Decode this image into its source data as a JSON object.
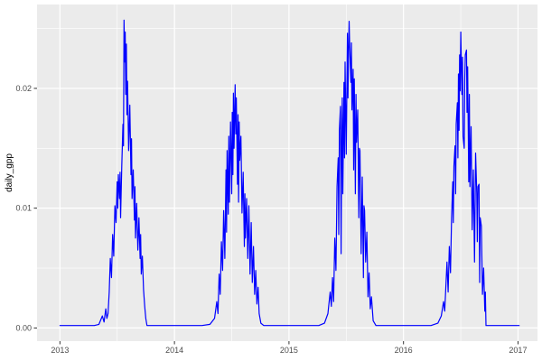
{
  "figure": {
    "background": "#FFFFFF"
  },
  "chart_data": {
    "type": "line",
    "title": "",
    "xlabel": "",
    "ylabel": "daily_gpp",
    "legend": "none",
    "grid": true,
    "panel_background": "#EBEBEB",
    "grid_major_color": "#FFFFFF",
    "grid_minor_color": "#FFFFFF",
    "tick_color": "#333333",
    "tick_label_color": "#4D4D4D",
    "xlim": [
      2012.8,
      2017.17
    ],
    "ylim": [
      -0.0011,
      0.027
    ],
    "x_ticks": [
      2013,
      2014,
      2015,
      2016,
      2017
    ],
    "x_tick_labels": [
      "2013",
      "2014",
      "2015",
      "2016",
      "2017"
    ],
    "x_minor_ticks": [
      2013.5,
      2014.5,
      2015.5,
      2016.5
    ],
    "y_ticks": [
      0.0,
      0.01,
      0.02
    ],
    "y_tick_labels": [
      "0.00",
      "0.01",
      "0.02"
    ],
    "y_minor_ticks": [
      0.005,
      0.015,
      0.025
    ],
    "series": [
      {
        "name": "daily_gpp",
        "color": "#0000FF",
        "points": [
          [
            2013.0,
            0.0002
          ],
          [
            2013.08,
            0.0002
          ],
          [
            2013.16,
            0.0002
          ],
          [
            2013.24,
            0.0002
          ],
          [
            2013.3,
            0.0002
          ],
          [
            2013.34,
            0.0003
          ],
          [
            2013.37,
            0.001
          ],
          [
            2013.385,
            0.0005
          ],
          [
            2013.4,
            0.0016
          ],
          [
            2013.41,
            0.0008
          ],
          [
            2013.42,
            0.0012
          ],
          [
            2013.43,
            0.003
          ],
          [
            2013.44,
            0.0058
          ],
          [
            2013.45,
            0.0042
          ],
          [
            2013.46,
            0.0078
          ],
          [
            2013.47,
            0.006
          ],
          [
            2013.48,
            0.0102
          ],
          [
            2013.49,
            0.0088
          ],
          [
            2013.5,
            0.0122
          ],
          [
            2013.505,
            0.01
          ],
          [
            2013.51,
            0.0128
          ],
          [
            2013.52,
            0.0108
          ],
          [
            2013.525,
            0.013
          ],
          [
            2013.53,
            0.0092
          ],
          [
            2013.54,
            0.0135
          ],
          [
            2013.55,
            0.017
          ],
          [
            2013.555,
            0.0152
          ],
          [
            2013.56,
            0.0257
          ],
          [
            2013.565,
            0.0222
          ],
          [
            2013.57,
            0.0247
          ],
          [
            2013.575,
            0.0195
          ],
          [
            2013.58,
            0.0237
          ],
          [
            2013.585,
            0.0178
          ],
          [
            2013.59,
            0.0206
          ],
          [
            2013.6,
            0.0148
          ],
          [
            2013.61,
            0.0186
          ],
          [
            2013.62,
            0.0128
          ],
          [
            2013.625,
            0.0158
          ],
          [
            2013.63,
            0.0108
          ],
          [
            2013.64,
            0.0132
          ],
          [
            2013.65,
            0.009
          ],
          [
            2013.655,
            0.0118
          ],
          [
            2013.66,
            0.0075
          ],
          [
            2013.67,
            0.0104
          ],
          [
            2013.68,
            0.0065
          ],
          [
            2013.69,
            0.0092
          ],
          [
            2013.7,
            0.0058
          ],
          [
            2013.705,
            0.0078
          ],
          [
            2013.71,
            0.0045
          ],
          [
            2013.72,
            0.006
          ],
          [
            2013.73,
            0.0032
          ],
          [
            2013.74,
            0.0018
          ],
          [
            2013.75,
            0.0008
          ],
          [
            2013.76,
            0.0002
          ],
          [
            2013.84,
            0.0002
          ],
          [
            2013.92,
            0.0002
          ],
          [
            2014.0,
            0.0002
          ],
          [
            2014.08,
            0.0002
          ],
          [
            2014.16,
            0.0002
          ],
          [
            2014.24,
            0.0002
          ],
          [
            2014.31,
            0.0003
          ],
          [
            2014.35,
            0.0008
          ],
          [
            2014.37,
            0.0022
          ],
          [
            2014.38,
            0.0012
          ],
          [
            2014.39,
            0.0045
          ],
          [
            2014.4,
            0.0028
          ],
          [
            2014.41,
            0.0072
          ],
          [
            2014.42,
            0.0048
          ],
          [
            2014.43,
            0.0098
          ],
          [
            2014.44,
            0.0058
          ],
          [
            2014.45,
            0.0132
          ],
          [
            2014.455,
            0.008
          ],
          [
            2014.46,
            0.0148
          ],
          [
            2014.47,
            0.0095
          ],
          [
            2014.475,
            0.016
          ],
          [
            2014.48,
            0.0105
          ],
          [
            2014.49,
            0.0172
          ],
          [
            2014.5,
            0.0112
          ],
          [
            2014.505,
            0.018
          ],
          [
            2014.51,
            0.0128
          ],
          [
            2014.515,
            0.0196
          ],
          [
            2014.52,
            0.015
          ],
          [
            2014.53,
            0.0203
          ],
          [
            2014.535,
            0.0162
          ],
          [
            2014.54,
            0.0192
          ],
          [
            2014.55,
            0.012
          ],
          [
            2014.555,
            0.0178
          ],
          [
            2014.56,
            0.0105
          ],
          [
            2014.565,
            0.0172
          ],
          [
            2014.57,
            0.014
          ],
          [
            2014.58,
            0.016
          ],
          [
            2014.59,
            0.0096
          ],
          [
            2014.6,
            0.013
          ],
          [
            2014.61,
            0.0068
          ],
          [
            2014.615,
            0.0112
          ],
          [
            2014.62,
            0.0075
          ],
          [
            2014.63,
            0.0108
          ],
          [
            2014.64,
            0.0058
          ],
          [
            2014.65,
            0.0102
          ],
          [
            2014.66,
            0.0045
          ],
          [
            2014.67,
            0.0088
          ],
          [
            2014.68,
            0.0038
          ],
          [
            2014.69,
            0.0068
          ],
          [
            2014.7,
            0.0028
          ],
          [
            2014.71,
            0.0048
          ],
          [
            2014.72,
            0.002
          ],
          [
            2014.73,
            0.0034
          ],
          [
            2014.74,
            0.0012
          ],
          [
            2014.755,
            0.0004
          ],
          [
            2014.78,
            0.0002
          ],
          [
            2014.86,
            0.0002
          ],
          [
            2014.94,
            0.0002
          ],
          [
            2015.02,
            0.0002
          ],
          [
            2015.1,
            0.0002
          ],
          [
            2015.18,
            0.0002
          ],
          [
            2015.26,
            0.0002
          ],
          [
            2015.31,
            0.0004
          ],
          [
            2015.34,
            0.0012
          ],
          [
            2015.36,
            0.003
          ],
          [
            2015.37,
            0.0018
          ],
          [
            2015.38,
            0.0042
          ],
          [
            2015.39,
            0.0022
          ],
          [
            2015.4,
            0.0075
          ],
          [
            2015.41,
            0.0048
          ],
          [
            2015.42,
            0.0118
          ],
          [
            2015.43,
            0.0142
          ],
          [
            2015.435,
            0.0078
          ],
          [
            2015.44,
            0.0165
          ],
          [
            2015.45,
            0.0185
          ],
          [
            2015.455,
            0.0062
          ],
          [
            2015.46,
            0.015
          ],
          [
            2015.465,
            0.0192
          ],
          [
            2015.47,
            0.0112
          ],
          [
            2015.48,
            0.0205
          ],
          [
            2015.485,
            0.0142
          ],
          [
            2015.49,
            0.0222
          ],
          [
            2015.5,
            0.0145
          ],
          [
            2015.51,
            0.0246
          ],
          [
            2015.515,
            0.0192
          ],
          [
            2015.52,
            0.023
          ],
          [
            2015.525,
            0.0256
          ],
          [
            2015.53,
            0.0235
          ],
          [
            2015.54,
            0.0205
          ],
          [
            2015.545,
            0.0238
          ],
          [
            2015.55,
            0.0182
          ],
          [
            2015.56,
            0.0216
          ],
          [
            2015.565,
            0.0132
          ],
          [
            2015.57,
            0.0208
          ],
          [
            2015.58,
            0.0112
          ],
          [
            2015.585,
            0.0195
          ],
          [
            2015.59,
            0.0155
          ],
          [
            2015.6,
            0.0182
          ],
          [
            2015.61,
            0.0092
          ],
          [
            2015.615,
            0.015
          ],
          [
            2015.62,
            0.0148
          ],
          [
            2015.63,
            0.0062
          ],
          [
            2015.64,
            0.0126
          ],
          [
            2015.65,
            0.0042
          ],
          [
            2015.655,
            0.0102
          ],
          [
            2015.66,
            0.0098
          ],
          [
            2015.67,
            0.0055
          ],
          [
            2015.68,
            0.008
          ],
          [
            2015.69,
            0.0026
          ],
          [
            2015.7,
            0.0046
          ],
          [
            2015.71,
            0.0016
          ],
          [
            2015.72,
            0.0026
          ],
          [
            2015.735,
            0.0006
          ],
          [
            2015.76,
            0.0002
          ],
          [
            2015.84,
            0.0002
          ],
          [
            2015.92,
            0.0002
          ],
          [
            2016.0,
            0.0002
          ],
          [
            2016.08,
            0.0002
          ],
          [
            2016.16,
            0.0002
          ],
          [
            2016.24,
            0.0002
          ],
          [
            2016.3,
            0.0004
          ],
          [
            2016.33,
            0.001
          ],
          [
            2016.35,
            0.0022
          ],
          [
            2016.36,
            0.0014
          ],
          [
            2016.37,
            0.0035
          ],
          [
            2016.38,
            0.0055
          ],
          [
            2016.39,
            0.003
          ],
          [
            2016.4,
            0.0068
          ],
          [
            2016.41,
            0.0046
          ],
          [
            2016.42,
            0.0092
          ],
          [
            2016.43,
            0.0122
          ],
          [
            2016.435,
            0.0088
          ],
          [
            2016.44,
            0.0135
          ],
          [
            2016.45,
            0.0152
          ],
          [
            2016.455,
            0.0112
          ],
          [
            2016.46,
            0.017
          ],
          [
            2016.47,
            0.0188
          ],
          [
            2016.475,
            0.0142
          ],
          [
            2016.48,
            0.0212
          ],
          [
            2016.485,
            0.0165
          ],
          [
            2016.49,
            0.0228
          ],
          [
            2016.495,
            0.0198
          ],
          [
            2016.5,
            0.0247
          ],
          [
            2016.51,
            0.0195
          ],
          [
            2016.515,
            0.0226
          ],
          [
            2016.52,
            0.016
          ],
          [
            2016.53,
            0.015
          ],
          [
            2016.535,
            0.0208
          ],
          [
            2016.54,
            0.0228
          ],
          [
            2016.55,
            0.0232
          ],
          [
            2016.555,
            0.018
          ],
          [
            2016.56,
            0.0218
          ],
          [
            2016.57,
            0.0122
          ],
          [
            2016.575,
            0.0195
          ],
          [
            2016.58,
            0.0118
          ],
          [
            2016.59,
            0.0168
          ],
          [
            2016.6,
            0.0082
          ],
          [
            2016.61,
            0.0132
          ],
          [
            2016.62,
            0.0055
          ],
          [
            2016.63,
            0.0146
          ],
          [
            2016.64,
            0.0112
          ],
          [
            2016.645,
            0.0072
          ],
          [
            2016.65,
            0.0118
          ],
          [
            2016.66,
            0.012
          ],
          [
            2016.665,
            0.0038
          ],
          [
            2016.67,
            0.0092
          ],
          [
            2016.68,
            0.0085
          ],
          [
            2016.69,
            0.0028
          ],
          [
            2016.7,
            0.005
          ],
          [
            2016.71,
            0.0014
          ],
          [
            2016.715,
            0.003
          ],
          [
            2016.72,
            0.0002
          ],
          [
            2016.8,
            0.0002
          ],
          [
            2016.88,
            0.0002
          ],
          [
            2016.96,
            0.0002
          ],
          [
            2017.01,
            0.0002
          ]
        ]
      }
    ]
  }
}
